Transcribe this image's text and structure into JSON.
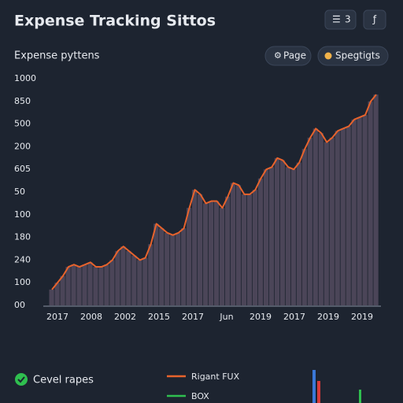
{
  "header": {
    "title": "Expense Tracking Sittos",
    "menu_count": "3",
    "share_label": "ƒ"
  },
  "toolbar": {
    "subtitle": "Expense pyttens",
    "page_button": "Page",
    "settings_button": "Spegtigts"
  },
  "chart_data": {
    "type": "area",
    "y_axis_labels": [
      "1000",
      "850",
      "500",
      "200",
      "605",
      "50",
      "100",
      "180",
      "240",
      "100",
      "00"
    ],
    "x_axis_labels": [
      "2017",
      "2008",
      "2002",
      "2015",
      "2017",
      "Jun",
      "2019",
      "2017",
      "2019",
      "2019"
    ],
    "values": [
      0.7,
      1.0,
      1.3,
      1.7,
      1.8,
      1.7,
      1.8,
      1.9,
      1.7,
      1.7,
      1.8,
      2.0,
      2.4,
      2.6,
      2.4,
      2.2,
      2.0,
      2.1,
      2.7,
      3.6,
      3.4,
      3.2,
      3.1,
      3.2,
      3.4,
      4.3,
      5.1,
      4.9,
      4.5,
      4.6,
      4.6,
      4.3,
      4.8,
      5.4,
      5.3,
      4.9,
      4.9,
      5.1,
      5.6,
      6.0,
      6.1,
      6.5,
      6.4,
      6.1,
      6.0,
      6.3,
      6.9,
      7.4,
      7.8,
      7.6,
      7.2,
      7.4,
      7.7,
      7.8,
      7.9,
      8.2,
      8.3,
      8.4,
      9.0,
      9.3
    ],
    "ylim": [
      0,
      10
    ],
    "color": "#4b4558",
    "line_color": "#e8632c"
  },
  "legend": {
    "status": "Cevel rapes",
    "items": [
      {
        "name": "Rigant FUX",
        "color": "#e8632c"
      },
      {
        "name": "BOX",
        "color": "#2fbf4f"
      }
    ]
  }
}
